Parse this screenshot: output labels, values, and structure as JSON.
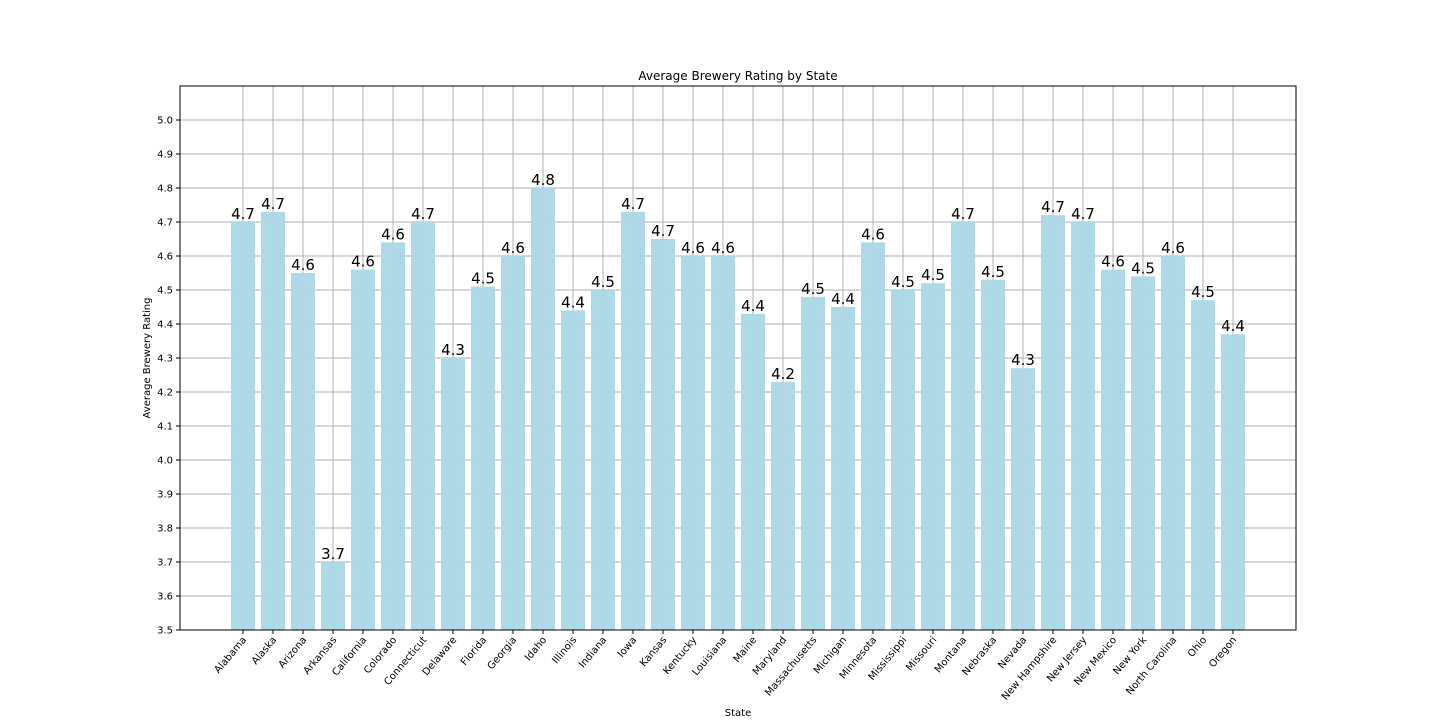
{
  "chart_data": {
    "type": "bar",
    "title": "Average Brewery Rating by State",
    "xlabel": "State",
    "ylabel": "Average Brewery Rating",
    "ylim": [
      3.5,
      5.1
    ],
    "yticks": [
      "3.5",
      "3.6",
      "3.7",
      "3.8",
      "3.9",
      "4.0",
      "4.1",
      "4.2",
      "4.3",
      "4.4",
      "4.5",
      "4.6",
      "4.7",
      "4.8",
      "4.9",
      "5.0"
    ],
    "grid": true,
    "bar_color": "#add8e6",
    "categories": [
      "Alabama",
      "Alaska",
      "Arizona",
      "Arkansas",
      "California",
      "Colorado",
      "Connecticut",
      "Delaware",
      "Florida",
      "Georgia",
      "Idaho",
      "Illinois",
      "Indiana",
      "Iowa",
      "Kansas",
      "Kentucky",
      "Louisiana",
      "Maine",
      "Maryland",
      "Massachusetts",
      "Michigan",
      "Minnesota",
      "Mississippi",
      "Missouri",
      "Montana",
      "Nebraska",
      "Nevada",
      "New Hampshire",
      "New Jersey",
      "New Mexico",
      "New York",
      "North Carolina",
      "Ohio",
      "Oregon"
    ],
    "values": [
      4.7,
      4.73,
      4.55,
      3.7,
      4.56,
      4.64,
      4.7,
      4.3,
      4.51,
      4.6,
      4.8,
      4.44,
      4.5,
      4.73,
      4.65,
      4.6,
      4.6,
      4.43,
      4.23,
      4.48,
      4.45,
      4.64,
      4.5,
      4.52,
      4.7,
      4.53,
      4.27,
      4.72,
      4.7,
      4.56,
      4.54,
      4.6,
      4.47,
      4.37
    ],
    "data_labels": [
      "4.7",
      "4.7",
      "4.6",
      "3.7",
      "4.6",
      "4.6",
      "4.7",
      "4.3",
      "4.5",
      "4.6",
      "4.8",
      "4.4",
      "4.5",
      "4.7",
      "4.7",
      "4.6",
      "4.6",
      "4.4",
      "4.2",
      "4.5",
      "4.4",
      "4.6",
      "4.5",
      "4.5",
      "4.7",
      "4.5",
      "4.3",
      "4.7",
      "4.7",
      "4.6",
      "4.5",
      "4.6",
      "4.5",
      "4.4"
    ]
  }
}
